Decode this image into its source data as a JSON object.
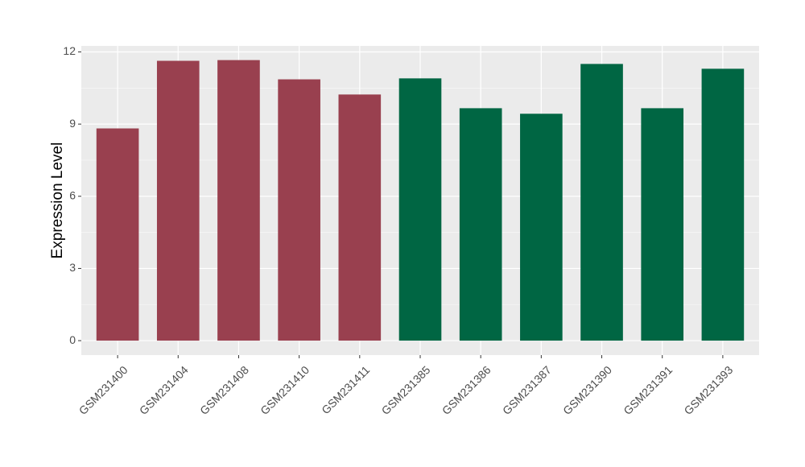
{
  "chart_data": {
    "type": "bar",
    "y_label": "Expression Level",
    "categories": [
      "GSM231400",
      "GSM231404",
      "GSM231408",
      "GSM231410",
      "GSM231411",
      "GSM231385",
      "GSM231386",
      "GSM231387",
      "GSM231390",
      "GSM231391",
      "GSM231393"
    ],
    "values": [
      8.82,
      11.63,
      11.66,
      10.86,
      10.23,
      10.9,
      9.66,
      9.43,
      11.5,
      9.66,
      11.3
    ],
    "colors": [
      "#99404f",
      "#99404f",
      "#99404f",
      "#99404f",
      "#99404f",
      "#006643",
      "#006643",
      "#006643",
      "#006643",
      "#006643",
      "#006643"
    ],
    "ylim": [
      -0.6,
      12.25
    ],
    "yticks": [
      0,
      3,
      6,
      9,
      12
    ],
    "grid": true
  }
}
